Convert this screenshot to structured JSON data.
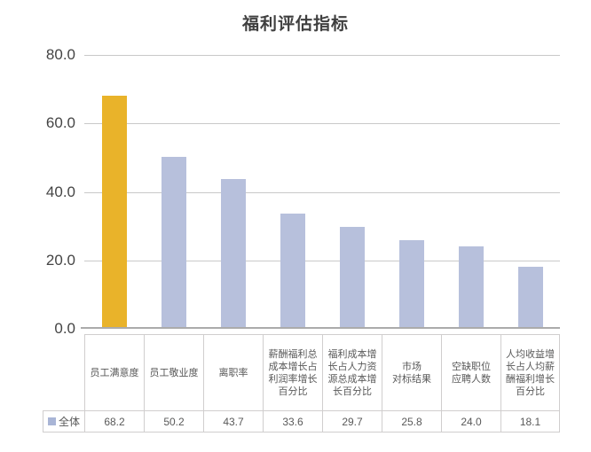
{
  "title": "福利评估指标",
  "colors": {
    "highlight_bar": "#E9B32A",
    "default_bar": "#B7C0DC",
    "legend_marker": "#A9B5D6",
    "gridline": "#C9C9C9",
    "axis_line": "#ABABAB",
    "axis_text": "#444444",
    "title_text": "#3F3F3F",
    "table_border": "#D0CECE",
    "table_text": "#595959"
  },
  "legend": {
    "series_label": "全体"
  },
  "chart_data": {
    "type": "bar",
    "title": "福利评估指标",
    "categories": [
      "员工满意度",
      "员工敬业度",
      "离职率",
      "薪酬福利总成本增长占利润率增长百分比",
      "福利成本增长占人力资源总成本增长百分比",
      "市场\n对标结果",
      "空缺职位\n应聘人数",
      "人均收益增长占人均薪酬福利增长百分比"
    ],
    "series": [
      {
        "name": "全体",
        "values": [
          68.2,
          50.2,
          43.7,
          33.6,
          29.7,
          25.8,
          24.0,
          18.1
        ],
        "value_labels": [
          "68.2",
          "50.2",
          "43.7",
          "33.6",
          "29.7",
          "25.8",
          "24.0",
          "18.1"
        ]
      }
    ],
    "ylim": [
      0,
      80
    ],
    "yticks": [
      0,
      20,
      40,
      60,
      80
    ],
    "ytick_labels": [
      "0.0",
      "20.0",
      "40.0",
      "60.0",
      "80.0"
    ],
    "grid": true,
    "highlight_index": 0,
    "legend_position": "table-bottom-left",
    "xlabel": "",
    "ylabel": ""
  }
}
